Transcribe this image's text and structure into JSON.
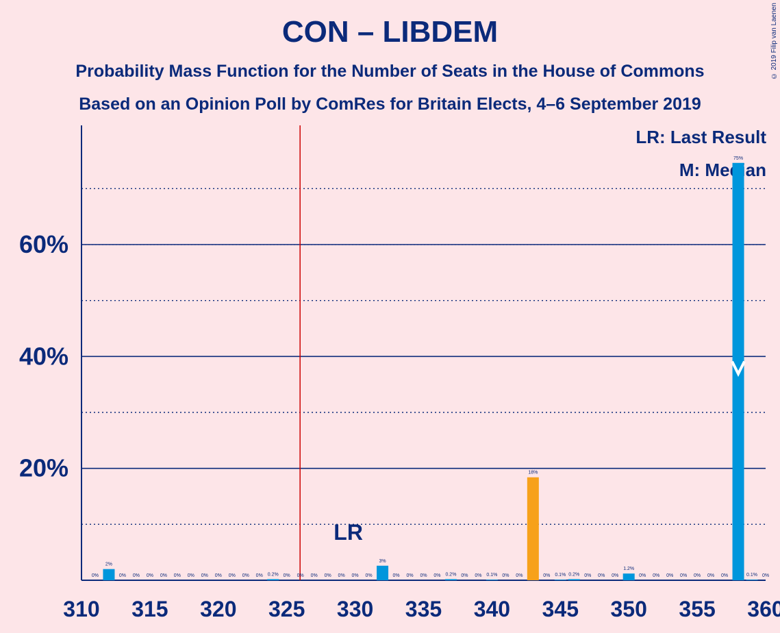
{
  "title": "CON – LIBDEM",
  "subtitle1": "Probability Mass Function for the Number of Seats in the House of Commons",
  "subtitle2": "Based on an Opinion Poll by ComRes for Britain Elects, 4–6 September 2019",
  "copyright": "© 2019 Filip van Laenen",
  "legend": {
    "last_result": "LR: Last Result",
    "median": "M: Median"
  },
  "colors": {
    "primary": "#0096dc",
    "highlight": "#f7a11a",
    "majority_line": "#cc0000",
    "axis": "#0b2a7a",
    "background": "#fde5e8"
  },
  "chart_data": {
    "type": "bar",
    "xlabel": "",
    "ylabel": "",
    "x_ticks": [
      310,
      315,
      320,
      325,
      330,
      335,
      340,
      345,
      350,
      355,
      360
    ],
    "y_ticks": [
      0,
      20,
      40,
      60
    ],
    "y_tick_labels": [
      "",
      "20%",
      "40%",
      "60%"
    ],
    "xlim": [
      310,
      360
    ],
    "ylim": [
      0,
      80
    ],
    "majority_line": 326,
    "last_result": 329,
    "last_result_label": "LR",
    "median": 358,
    "highlight_seat": 343,
    "seats": [
      311,
      312,
      313,
      314,
      315,
      316,
      317,
      318,
      319,
      320,
      321,
      322,
      323,
      324,
      325,
      326,
      327,
      328,
      329,
      330,
      331,
      332,
      333,
      334,
      335,
      336,
      337,
      338,
      339,
      340,
      341,
      342,
      343,
      344,
      345,
      346,
      347,
      348,
      349,
      350,
      351,
      352,
      353,
      354,
      355,
      356,
      357,
      358,
      359,
      360
    ],
    "values": [
      0,
      2,
      0,
      0,
      0,
      0,
      0,
      0,
      0,
      0,
      0,
      0,
      0,
      0.2,
      0,
      0,
      0,
      0,
      0,
      0,
      0,
      2.6,
      0,
      0,
      0,
      0,
      0.2,
      0,
      0,
      0.1,
      0,
      0,
      18.4,
      0,
      0.1,
      0.2,
      0,
      0,
      0,
      1.2,
      0,
      0,
      0,
      0,
      0,
      0,
      0,
      74.6,
      0.1,
      0
    ],
    "labels": [
      "0%",
      "2%",
      "0%",
      "0%",
      "0%",
      "0%",
      "0%",
      "0%",
      "0%",
      "0%",
      "0%",
      "0%",
      "0%",
      "0.2%",
      "0%",
      "0%",
      "0%",
      "0%",
      "0%",
      "0%",
      "0%",
      "3%",
      "0%",
      "0%",
      "0%",
      "0%",
      "0.2%",
      "0%",
      "0%",
      "0.1%",
      "0%",
      "0%",
      "18%",
      "0%",
      "0.1%",
      "0.2%",
      "0%",
      "0%",
      "0%",
      "1.2%",
      "0%",
      "0%",
      "0%",
      "0%",
      "0%",
      "0%",
      "0%",
      "75%",
      "0.1%",
      "0%"
    ]
  }
}
